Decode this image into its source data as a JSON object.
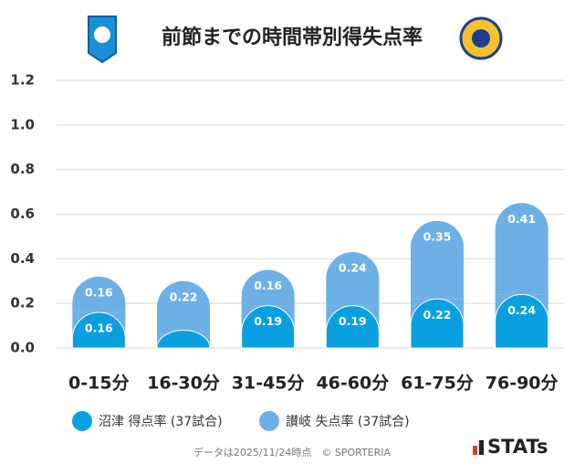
{
  "chart_data": {
    "type": "stacked_bar",
    "title": "前節までの時間帯別得失点率",
    "categories": [
      "0-15分",
      "16-30分",
      "31-45分",
      "46-60分",
      "61-75分",
      "76-90分"
    ],
    "series": [
      {
        "name": "沼津 得点率 (37試合)",
        "color": "#0aa0e0",
        "values": [
          0.16,
          0.08,
          0.19,
          0.19,
          0.22,
          0.24
        ],
        "value_labels": [
          "0.16",
          null,
          "0.19",
          "0.19",
          "0.22",
          "0.24"
        ]
      },
      {
        "name": "讃岐 失点率 (37試合)",
        "color": "#6db0e6",
        "values": [
          0.16,
          0.22,
          0.16,
          0.24,
          0.35,
          0.41
        ]
      }
    ],
    "ylim": [
      0,
      1.2
    ],
    "yticks": [
      {
        "value": 0,
        "label": "0.0"
      },
      0.2,
      0.4,
      0.6,
      0.8,
      {
        "value": 1,
        "label": "1.0"
      },
      1.2
    ],
    "grid": true,
    "footer": "データは2025/11/24時点　© SPORTERIA",
    "brand": "STATs"
  }
}
